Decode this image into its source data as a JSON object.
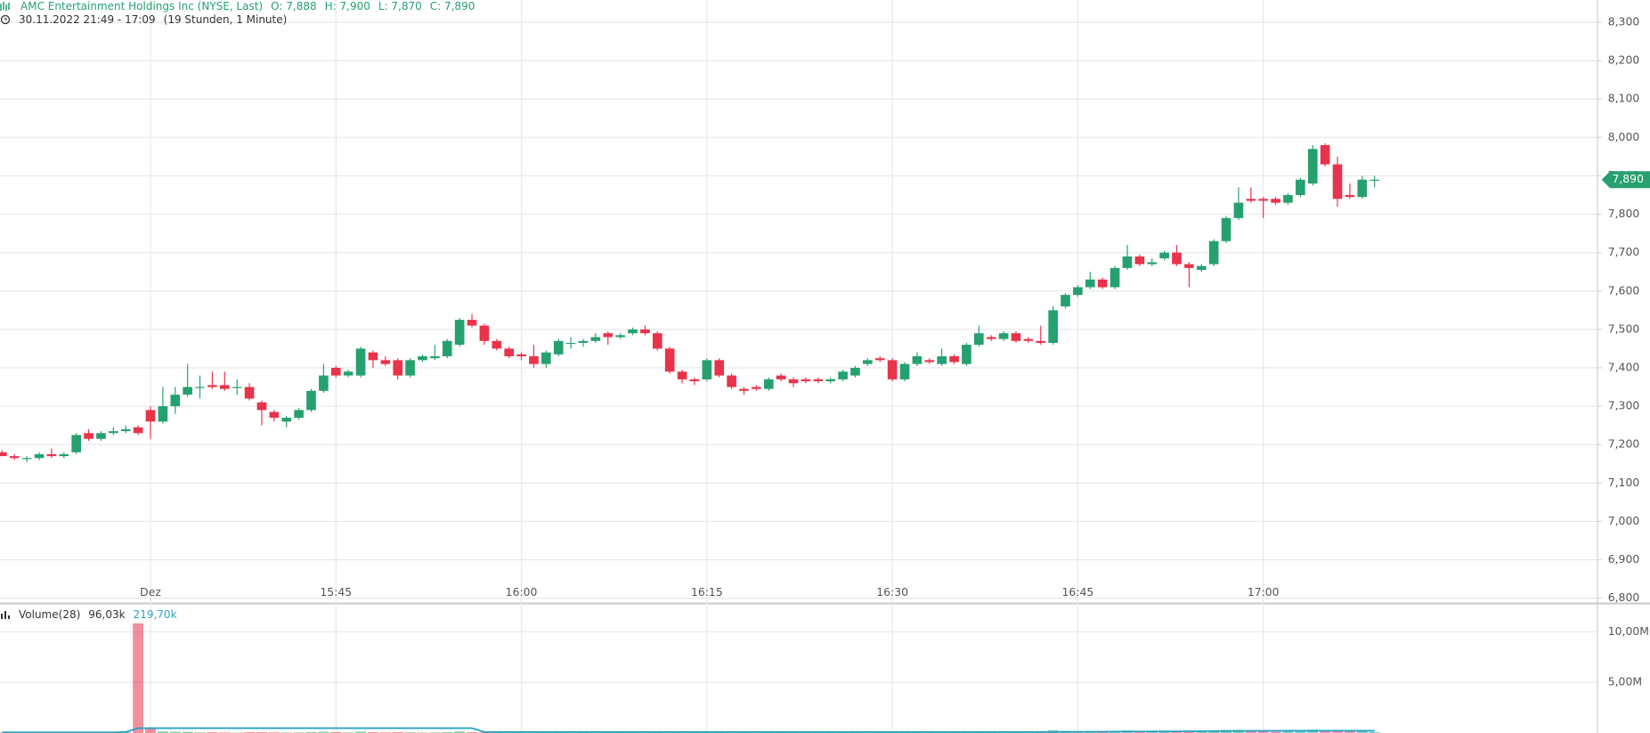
{
  "chart_data": {
    "type": "candlestick",
    "title": "AMC Entertainment Holdings Inc (NYSE, Last)",
    "ohlc_labels": [
      "O: 7,888",
      "H: 7,900",
      "L: 7,870",
      "C: 7,890"
    ],
    "period": "30.11.2022 21:49 - 17:09",
    "interval": "(19 Stunden, 1 Minute)",
    "up_color": "#26a06f",
    "down_color": "#e8334a",
    "ylim": [
      6.789,
      8.358
    ],
    "yticks": [
      {
        "value": 6.8,
        "label": "6,800"
      },
      {
        "value": 6.9,
        "label": "6,900"
      },
      {
        "value": 7.0,
        "label": "7,000"
      },
      {
        "value": 7.1,
        "label": "7,100"
      },
      {
        "value": 7.2,
        "label": "7,200"
      },
      {
        "value": 7.3,
        "label": "7,300"
      },
      {
        "value": 7.4,
        "label": "7,400"
      },
      {
        "value": 7.5,
        "label": "7,500"
      },
      {
        "value": 7.6,
        "label": "7,600"
      },
      {
        "value": 7.7,
        "label": "7,700"
      },
      {
        "value": 7.8,
        "label": "7,800"
      },
      {
        "value": 7.9,
        "label": "7,900"
      },
      {
        "value": 8.0,
        "label": "8,000"
      },
      {
        "value": 8.1,
        "label": "8,100"
      },
      {
        "value": 8.2,
        "label": "8,200"
      },
      {
        "value": 8.3,
        "label": "8,300"
      }
    ],
    "xticks": [
      {
        "value": 12,
        "label": "Dez"
      },
      {
        "value": 27,
        "label": "15:45"
      },
      {
        "value": 42,
        "label": "16:00"
      },
      {
        "value": 57,
        "label": "16:15"
      },
      {
        "value": 72,
        "label": "16:30"
      },
      {
        "value": 87,
        "label": "16:45"
      },
      {
        "value": 102,
        "label": "17:00"
      }
    ],
    "grid": true,
    "last_price": {
      "value": 7.89,
      "label": "7,890"
    },
    "ohlc": [
      [
        7.18,
        7.185,
        7.17,
        7.17
      ],
      [
        7.17,
        7.175,
        7.16,
        7.165
      ],
      [
        7.165,
        7.17,
        7.155,
        7.165
      ],
      [
        7.165,
        7.18,
        7.16,
        7.175
      ],
      [
        7.175,
        7.19,
        7.165,
        7.17
      ],
      [
        7.17,
        7.18,
        7.165,
        7.175
      ],
      [
        7.18,
        7.23,
        7.175,
        7.225
      ],
      [
        7.23,
        7.24,
        7.21,
        7.215
      ],
      [
        7.215,
        7.235,
        7.21,
        7.23
      ],
      [
        7.23,
        7.245,
        7.225,
        7.235
      ],
      [
        7.235,
        7.25,
        7.23,
        7.24
      ],
      [
        7.245,
        7.25,
        7.225,
        7.23
      ],
      [
        7.29,
        7.3,
        7.215,
        7.26
      ],
      [
        7.26,
        7.35,
        7.255,
        7.3
      ],
      [
        7.3,
        7.35,
        7.28,
        7.33
      ],
      [
        7.33,
        7.41,
        7.325,
        7.35
      ],
      [
        7.35,
        7.38,
        7.32,
        7.35
      ],
      [
        7.355,
        7.39,
        7.345,
        7.35
      ],
      [
        7.355,
        7.39,
        7.34,
        7.345
      ],
      [
        7.35,
        7.37,
        7.33,
        7.35
      ],
      [
        7.35,
        7.36,
        7.315,
        7.32
      ],
      [
        7.31,
        7.315,
        7.25,
        7.29
      ],
      [
        7.285,
        7.29,
        7.26,
        7.27
      ],
      [
        7.26,
        7.275,
        7.245,
        7.27
      ],
      [
        7.27,
        7.295,
        7.265,
        7.29
      ],
      [
        7.29,
        7.345,
        7.285,
        7.34
      ],
      [
        7.34,
        7.41,
        7.335,
        7.38
      ],
      [
        7.4,
        7.405,
        7.375,
        7.38
      ],
      [
        7.38,
        7.395,
        7.375,
        7.39
      ],
      [
        7.38,
        7.455,
        7.375,
        7.45
      ],
      [
        7.44,
        7.445,
        7.4,
        7.42
      ],
      [
        7.42,
        7.43,
        7.405,
        7.41
      ],
      [
        7.42,
        7.425,
        7.37,
        7.38
      ],
      [
        7.38,
        7.425,
        7.375,
        7.42
      ],
      [
        7.42,
        7.435,
        7.415,
        7.43
      ],
      [
        7.425,
        7.46,
        7.42,
        7.43
      ],
      [
        7.43,
        7.475,
        7.425,
        7.47
      ],
      [
        7.46,
        7.53,
        7.455,
        7.525
      ],
      [
        7.525,
        7.54,
        7.505,
        7.51
      ],
      [
        7.51,
        7.515,
        7.46,
        7.47
      ],
      [
        7.47,
        7.475,
        7.445,
        7.45
      ],
      [
        7.45,
        7.455,
        7.425,
        7.43
      ],
      [
        7.435,
        7.44,
        7.42,
        7.43
      ],
      [
        7.43,
        7.46,
        7.4,
        7.41
      ],
      [
        7.41,
        7.445,
        7.4,
        7.44
      ],
      [
        7.435,
        7.475,
        7.43,
        7.47
      ],
      [
        7.465,
        7.48,
        7.45,
        7.465
      ],
      [
        7.465,
        7.475,
        7.455,
        7.47
      ],
      [
        7.47,
        7.49,
        7.465,
        7.48
      ],
      [
        7.49,
        7.495,
        7.46,
        7.48
      ],
      [
        7.48,
        7.49,
        7.475,
        7.485
      ],
      [
        7.49,
        7.505,
        7.485,
        7.5
      ],
      [
        7.5,
        7.51,
        7.485,
        7.49
      ],
      [
        7.49,
        7.495,
        7.445,
        7.45
      ],
      [
        7.45,
        7.455,
        7.385,
        7.39
      ],
      [
        7.39,
        7.395,
        7.36,
        7.37
      ],
      [
        7.37,
        7.375,
        7.355,
        7.365
      ],
      [
        7.37,
        7.425,
        7.365,
        7.42
      ],
      [
        7.42,
        7.425,
        7.375,
        7.38
      ],
      [
        7.38,
        7.385,
        7.345,
        7.35
      ],
      [
        7.345,
        7.35,
        7.33,
        7.34
      ],
      [
        7.35,
        7.355,
        7.34,
        7.345
      ],
      [
        7.345,
        7.375,
        7.34,
        7.37
      ],
      [
        7.38,
        7.385,
        7.365,
        7.37
      ],
      [
        7.37,
        7.375,
        7.35,
        7.36
      ],
      [
        7.37,
        7.375,
        7.36,
        7.365
      ],
      [
        7.37,
        7.375,
        7.36,
        7.365
      ],
      [
        7.365,
        7.375,
        7.36,
        7.37
      ],
      [
        7.37,
        7.395,
        7.365,
        7.39
      ],
      [
        7.38,
        7.405,
        7.375,
        7.4
      ],
      [
        7.41,
        7.425,
        7.405,
        7.42
      ],
      [
        7.425,
        7.43,
        7.415,
        7.42
      ],
      [
        7.42,
        7.425,
        7.365,
        7.37
      ],
      [
        7.37,
        7.415,
        7.365,
        7.41
      ],
      [
        7.41,
        7.44,
        7.405,
        7.43
      ],
      [
        7.42,
        7.425,
        7.41,
        7.415
      ],
      [
        7.41,
        7.45,
        7.405,
        7.43
      ],
      [
        7.43,
        7.435,
        7.41,
        7.415
      ],
      [
        7.41,
        7.465,
        7.405,
        7.46
      ],
      [
        7.46,
        7.51,
        7.455,
        7.49
      ],
      [
        7.48,
        7.485,
        7.47,
        7.475
      ],
      [
        7.475,
        7.495,
        7.47,
        7.49
      ],
      [
        7.49,
        7.495,
        7.465,
        7.47
      ],
      [
        7.475,
        7.48,
        7.465,
        7.47
      ],
      [
        7.47,
        7.51,
        7.46,
        7.465
      ],
      [
        7.465,
        7.56,
        7.46,
        7.55
      ],
      [
        7.56,
        7.595,
        7.555,
        7.59
      ],
      [
        7.59,
        7.615,
        7.585,
        7.61
      ],
      [
        7.61,
        7.65,
        7.605,
        7.63
      ],
      [
        7.63,
        7.635,
        7.605,
        7.61
      ],
      [
        7.61,
        7.665,
        7.605,
        7.66
      ],
      [
        7.66,
        7.72,
        7.655,
        7.69
      ],
      [
        7.69,
        7.695,
        7.665,
        7.67
      ],
      [
        7.67,
        7.685,
        7.665,
        7.675
      ],
      [
        7.685,
        7.705,
        7.68,
        7.7
      ],
      [
        7.7,
        7.72,
        7.665,
        7.67
      ],
      [
        7.67,
        7.675,
        7.61,
        7.66
      ],
      [
        7.655,
        7.67,
        7.65,
        7.665
      ],
      [
        7.67,
        7.735,
        7.665,
        7.73
      ],
      [
        7.73,
        7.795,
        7.725,
        7.79
      ],
      [
        7.79,
        7.87,
        7.785,
        7.83
      ],
      [
        7.84,
        7.87,
        7.83,
        7.835
      ],
      [
        7.84,
        7.845,
        7.79,
        7.835
      ],
      [
        7.84,
        7.845,
        7.825,
        7.83
      ],
      [
        7.83,
        7.855,
        7.825,
        7.85
      ],
      [
        7.85,
        7.895,
        7.845,
        7.89
      ],
      [
        7.88,
        7.98,
        7.875,
        7.97
      ],
      [
        7.98,
        7.985,
        7.925,
        7.93
      ],
      [
        7.93,
        7.95,
        7.82,
        7.84
      ],
      [
        7.85,
        7.88,
        7.84,
        7.845
      ],
      [
        7.845,
        7.9,
        7.84,
        7.89
      ],
      [
        7.888,
        7.9,
        7.87,
        7.89
      ]
    ],
    "volume": {
      "title": "Volume(28)",
      "ylim": [
        0,
        12700000
      ],
      "yticks": [
        {
          "value": 5000000,
          "label": "5,00M"
        },
        {
          "value": 10000000,
          "label": "10,00M"
        }
      ],
      "ma_color": "#2aa3c4",
      "last_label": "96,03k",
      "ma_last_label": "219,70k",
      "values": [
        40000,
        50000,
        30000,
        60000,
        40000,
        50000,
        120000,
        80000,
        60000,
        50000,
        90000,
        10830000,
        400000,
        150000,
        120000,
        110000,
        60000,
        70000,
        50000,
        40000,
        80000,
        90000,
        60000,
        50000,
        60000,
        100000,
        120000,
        90000,
        60000,
        130000,
        80000,
        60000,
        90000,
        70000,
        50000,
        60000,
        80000,
        150000,
        90000,
        70000,
        60000,
        60000,
        40000,
        70000,
        60000,
        80000,
        40000,
        40000,
        50000,
        50000,
        40000,
        60000,
        50000,
        70000,
        110000,
        60000,
        50000,
        80000,
        70000,
        60000,
        50000,
        40000,
        50000,
        40000,
        50000,
        40000,
        40000,
        40000,
        50000,
        60000,
        60000,
        40000,
        70000,
        60000,
        60000,
        40000,
        60000,
        50000,
        90000,
        110000,
        50000,
        50000,
        50000,
        40000,
        60000,
        280000,
        200000,
        160000,
        170000,
        110000,
        180000,
        240000,
        130000,
        90000,
        120000,
        130000,
        150000,
        90000,
        220000,
        300000,
        320000,
        160000,
        180000,
        110000,
        140000,
        200000,
        330000,
        260000,
        300000,
        150000,
        180000,
        96030
      ],
      "ma_values": [
        60000,
        60000,
        60000,
        60000,
        60000,
        60000,
        60000,
        60000,
        60000,
        60000,
        100000,
        480000,
        480000,
        480000,
        480000,
        480000,
        480000,
        480000,
        480000,
        480000,
        480000,
        480000,
        480000,
        480000,
        480000,
        480000,
        480000,
        480000,
        480000,
        480000,
        480000,
        480000,
        480000,
        480000,
        480000,
        480000,
        480000,
        480000,
        480000,
        100000,
        90000,
        90000,
        90000,
        90000,
        90000,
        90000,
        90000,
        90000,
        90000,
        90000,
        90000,
        90000,
        90000,
        90000,
        90000,
        90000,
        90000,
        90000,
        90000,
        90000,
        90000,
        90000,
        90000,
        90000,
        90000,
        90000,
        90000,
        90000,
        90000,
        90000,
        90000,
        90000,
        90000,
        90000,
        90000,
        90000,
        90000,
        90000,
        90000,
        90000,
        90000,
        90000,
        90000,
        90000,
        90000,
        100000,
        110000,
        120000,
        130000,
        130000,
        140000,
        150000,
        150000,
        150000,
        160000,
        160000,
        170000,
        170000,
        180000,
        190000,
        200000,
        210000,
        210000,
        210000,
        220000,
        220000,
        230000,
        230000,
        230000,
        220000,
        220000,
        219700
      ]
    }
  }
}
